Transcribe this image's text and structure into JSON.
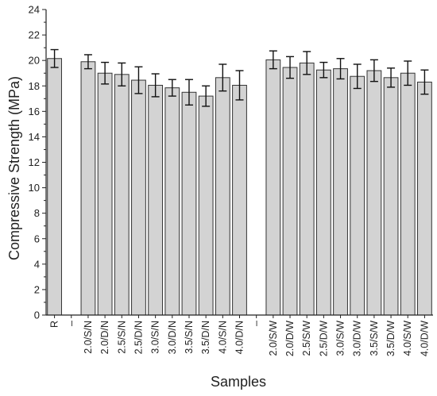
{
  "chart_data": {
    "type": "bar",
    "xlabel": "Samples",
    "ylabel": "Compressive Strength (MPa)",
    "ylim": [
      0,
      24
    ],
    "yticks": [
      0,
      2,
      4,
      6,
      8,
      10,
      12,
      14,
      16,
      18,
      20,
      22,
      24
    ],
    "categories": [
      "R",
      "–",
      "2.0/S/N",
      "2.0/D/N",
      "2.5/S/N",
      "2.5/D/N",
      "3.0/S/N",
      "3.0/D/N",
      "3.5/S/N",
      "3.5/D/N",
      "4.0/S/N",
      "4.0/D/N",
      "–",
      "2.0/S/W",
      "2.0/D/W",
      "2.5/S/W",
      "2.5/D/W",
      "3.0/S/W",
      "3.0/D/W",
      "3.5/S/W",
      "3.5/D/W",
      "4.0/S/W",
      "4.0/D/W"
    ],
    "values": [
      20.15,
      null,
      19.9,
      19.0,
      18.9,
      18.45,
      18.05,
      17.85,
      17.5,
      17.2,
      18.65,
      18.05,
      null,
      20.05,
      19.45,
      19.8,
      19.25,
      19.35,
      18.75,
      19.2,
      18.65,
      19.0,
      18.3
    ],
    "errors": [
      0.7,
      null,
      0.55,
      0.85,
      0.9,
      1.05,
      0.9,
      0.65,
      1.0,
      0.8,
      1.05,
      1.15,
      null,
      0.7,
      0.85,
      0.9,
      0.6,
      0.8,
      0.95,
      0.85,
      0.75,
      0.95,
      0.95
    ],
    "bar_color": "#d3d3d3",
    "edge_color": "#333333",
    "grid": false
  }
}
